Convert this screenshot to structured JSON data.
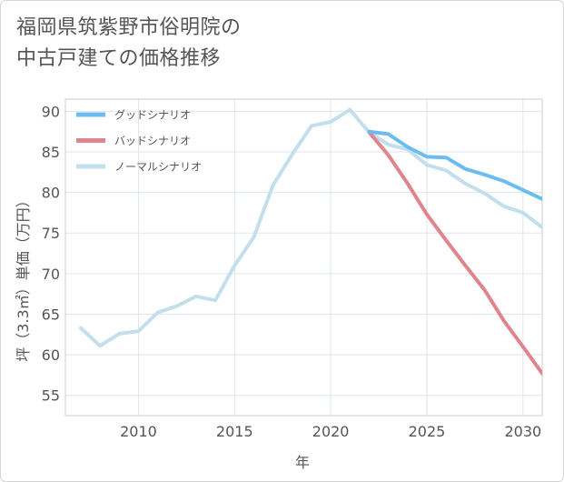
{
  "title_line1": "福岡県筑紫野市俗明院の",
  "title_line2": "中古戸建ての価格推移",
  "chart_data": {
    "type": "line",
    "xlabel": "年",
    "ylabel": "坪（3.3㎡）単価（万円）",
    "xlim": [
      2006.2,
      2031
    ],
    "ylim": [
      52.5,
      91.5
    ],
    "xticks": [
      2010,
      2015,
      2020,
      2025,
      2030
    ],
    "yticks": [
      55,
      60,
      65,
      70,
      75,
      80,
      85,
      90
    ],
    "grid": true,
    "legend_position": "top-left",
    "series": [
      {
        "name": "グッドシナリオ",
        "color": "#6bbcf0",
        "x": [
          2022,
          2023,
          2024,
          2025,
          2026,
          2027,
          2028,
          2029,
          2030,
          2031
        ],
        "y": [
          87.5,
          87.2,
          85.6,
          84.4,
          84.3,
          82.9,
          82.2,
          81.4,
          80.3,
          79.2
        ]
      },
      {
        "name": "バッドシナリオ",
        "color": "#e0858d",
        "x": [
          2022,
          2023,
          2024,
          2025,
          2026,
          2027,
          2028,
          2029,
          2030,
          2031
        ],
        "y": [
          87.4,
          84.6,
          81.1,
          77.3,
          74.1,
          71.0,
          68.0,
          64.2,
          61.0,
          57.7
        ]
      },
      {
        "name": "ノーマルシナリオ",
        "color": "#c2dfeb",
        "x": [
          2007,
          2008,
          2009,
          2010,
          2011,
          2012,
          2013,
          2014,
          2015,
          2016,
          2017,
          2018,
          2019,
          2020,
          2021,
          2022,
          2023,
          2024,
          2025,
          2026,
          2027,
          2028,
          2029,
          2030,
          2031
        ],
        "y": [
          63.3,
          61.1,
          62.6,
          62.9,
          65.2,
          66.0,
          67.2,
          66.7,
          71.0,
          74.5,
          80.9,
          84.7,
          88.2,
          88.7,
          90.2,
          87.4,
          85.9,
          85.3,
          83.4,
          82.7,
          81.1,
          79.9,
          78.3,
          77.5,
          75.7
        ]
      }
    ]
  }
}
